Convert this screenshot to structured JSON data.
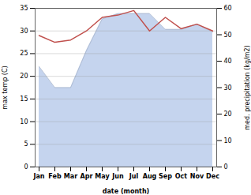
{
  "chart_data": {
    "type": "line",
    "xlabel": "date (month)",
    "ylabel": "max temp (C)",
    "y2label": "med. precipitation (kg/m2)",
    "categories": [
      "Jan",
      "Feb",
      "Mar",
      "Apr",
      "May",
      "Jun",
      "Jul",
      "Aug",
      "Sep",
      "Oct",
      "Nov",
      "Dec"
    ],
    "series": [
      {
        "type": "area",
        "axis": "y2",
        "color": "#c5d4ee",
        "values": [
          38,
          30,
          30,
          44,
          56,
          58,
          58,
          58,
          52,
          52,
          54,
          51
        ]
      },
      {
        "type": "line",
        "color": "#c0504d",
        "values": [
          29,
          27.5,
          28,
          30,
          33,
          33.5,
          34.5,
          30,
          33,
          30.5,
          31.5,
          30
        ]
      }
    ],
    "ylim": [
      0,
      35
    ],
    "yticks": [
      0,
      5,
      10,
      15,
      20,
      25,
      30,
      35
    ],
    "y2lim": [
      0,
      60
    ],
    "y2ticks": [
      0,
      10,
      20,
      30,
      40,
      50,
      60
    ],
    "grid": true
  }
}
